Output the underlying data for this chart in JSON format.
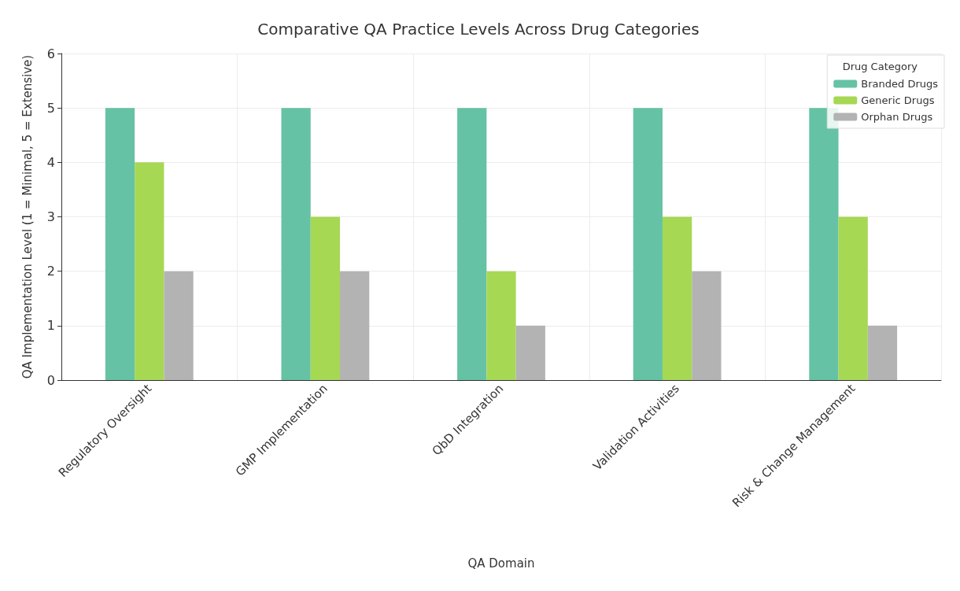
{
  "chart_data": {
    "type": "bar",
    "title": "Comparative QA Practice Levels Across Drug Categories",
    "xlabel": "QA Domain",
    "ylabel": "QA Implementation Level (1 = Minimal, 5 = Extensive)",
    "legend_title": "Drug Category",
    "categories": [
      "Regulatory Oversight",
      "GMP Implementation",
      "QbD Integration",
      "Validation Activities",
      "Risk & Change Management"
    ],
    "series": [
      {
        "name": "Branded Drugs",
        "color": "#66c2a5",
        "values": [
          5,
          5,
          5,
          5,
          5
        ]
      },
      {
        "name": "Generic Drugs",
        "color": "#a6d854",
        "values": [
          4,
          3,
          2,
          3,
          3
        ]
      },
      {
        "name": "Orphan Drugs",
        "color": "#b3b3b3",
        "values": [
          2,
          2,
          1,
          2,
          1
        ]
      }
    ],
    "ylim": [
      0,
      6
    ],
    "yticks": [
      0,
      1,
      2,
      3,
      4,
      5,
      6
    ],
    "grid": true,
    "legend": "top right"
  }
}
